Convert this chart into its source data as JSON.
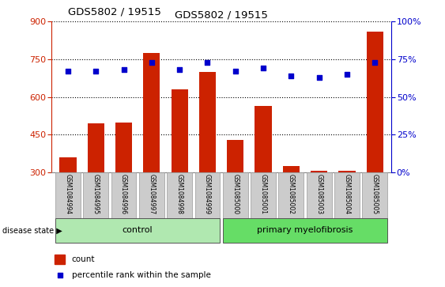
{
  "title": "GDS5802 / 19515",
  "samples": [
    "GSM1084994",
    "GSM1084995",
    "GSM1084996",
    "GSM1084997",
    "GSM1084998",
    "GSM1084999",
    "GSM1085000",
    "GSM1085001",
    "GSM1085002",
    "GSM1085003",
    "GSM1085004",
    "GSM1085005"
  ],
  "counts": [
    360,
    495,
    498,
    775,
    630,
    700,
    430,
    565,
    325,
    305,
    305,
    860
  ],
  "percentiles": [
    67,
    67,
    68,
    73,
    68,
    73,
    67,
    69,
    64,
    63,
    65,
    73
  ],
  "group_labels": [
    "control",
    "primary myelofibrosis"
  ],
  "group_sizes": [
    6,
    6
  ],
  "ylim_left": [
    300,
    900
  ],
  "ylim_right": [
    0,
    100
  ],
  "yticks_left": [
    300,
    450,
    600,
    750,
    900
  ],
  "yticks_right": [
    0,
    25,
    50,
    75,
    100
  ],
  "bar_color": "#cc2200",
  "dot_color": "#0000cc",
  "bg_group1": "#b0e8b0",
  "bg_group2": "#66dd66",
  "legend_count_label": "count",
  "legend_pct_label": "percentile rank within the sample",
  "disease_state_label": "disease state"
}
